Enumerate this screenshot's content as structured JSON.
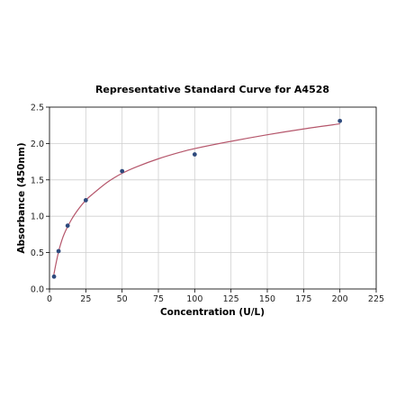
{
  "chart_data": {
    "type": "scatter",
    "title": "Representative Standard Curve for A4528",
    "xlabel": "Concentration (U/L)",
    "ylabel": "Absorbance (450nm)",
    "xlim": [
      0,
      225
    ],
    "ylim": [
      0,
      2.5
    ],
    "xticks": [
      0,
      25,
      50,
      75,
      100,
      125,
      150,
      175,
      200,
      225
    ],
    "yticks": [
      0.0,
      0.5,
      1.0,
      1.5,
      2.0,
      2.5
    ],
    "xtick_labels": [
      "0",
      "25",
      "50",
      "75",
      "100",
      "125",
      "150",
      "175",
      "200",
      "225"
    ],
    "ytick_labels": [
      "0.0",
      "0.5",
      "1.0",
      "1.5",
      "2.0",
      "2.5"
    ],
    "grid": true,
    "series": [
      {
        "type": "scatter",
        "x": [
          3.125,
          6.25,
          12.5,
          25,
          50,
          100,
          200
        ],
        "y": [
          0.17,
          0.52,
          0.87,
          1.22,
          1.62,
          1.85,
          2.31
        ]
      },
      {
        "type": "line",
        "x": [
          3,
          5,
          7,
          10,
          15,
          20,
          25,
          30,
          40,
          50,
          60,
          75,
          90,
          100,
          125,
          150,
          175,
          200
        ],
        "y": [
          0.2,
          0.4,
          0.57,
          0.75,
          0.95,
          1.1,
          1.22,
          1.31,
          1.47,
          1.59,
          1.68,
          1.79,
          1.88,
          1.93,
          2.03,
          2.12,
          2.2,
          2.27
        ]
      }
    ],
    "colors": {
      "points": "#2e4a7d",
      "curve": "#b5566b"
    }
  }
}
